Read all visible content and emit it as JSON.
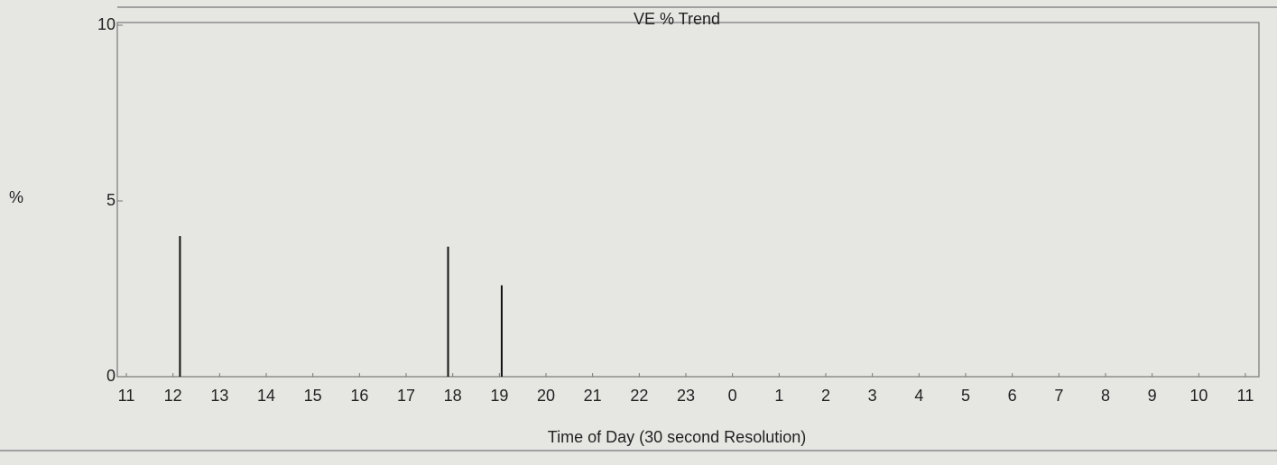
{
  "chart_data": {
    "type": "bar",
    "title": "VE % Trend",
    "ylabel": "%",
    "xlabel": "Time of Day (30 second Resolution)",
    "x": [
      1.15,
      6.9,
      8.05
    ],
    "values": [
      4.0,
      3.7,
      2.6
    ],
    "color": "#111111",
    "xlim": [
      0,
      24
    ],
    "xticks": [
      {
        "value": 0,
        "label": "11"
      },
      {
        "value": 1,
        "label": "12"
      },
      {
        "value": 2,
        "label": "13"
      },
      {
        "value": 3,
        "label": "14"
      },
      {
        "value": 4,
        "label": "15"
      },
      {
        "value": 5,
        "label": "16"
      },
      {
        "value": 6,
        "label": "17"
      },
      {
        "value": 7,
        "label": "18"
      },
      {
        "value": 8,
        "label": "19"
      },
      {
        "value": 9,
        "label": "20"
      },
      {
        "value": 10,
        "label": "21"
      },
      {
        "value": 11,
        "label": "22"
      },
      {
        "value": 12,
        "label": "23"
      },
      {
        "value": 13,
        "label": "0"
      },
      {
        "value": 14,
        "label": "1"
      },
      {
        "value": 15,
        "label": "2"
      },
      {
        "value": 16,
        "label": "3"
      },
      {
        "value": 17,
        "label": "4"
      },
      {
        "value": 18,
        "label": "5"
      },
      {
        "value": 19,
        "label": "6"
      },
      {
        "value": 20,
        "label": "7"
      },
      {
        "value": 21,
        "label": "8"
      },
      {
        "value": 22,
        "label": "9"
      },
      {
        "value": 23,
        "label": "10"
      },
      {
        "value": 24,
        "label": "11"
      }
    ],
    "ylim": [
      0,
      10
    ],
    "yticks": [
      0,
      5,
      10
    ]
  }
}
